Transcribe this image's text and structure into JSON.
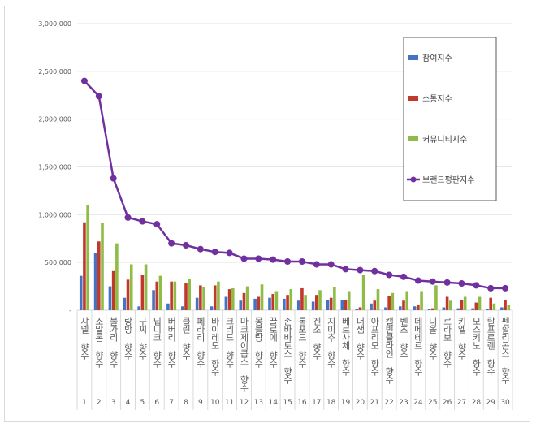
{
  "chart_data": {
    "type": "bar",
    "title": "",
    "xlabel": "",
    "ylabel": "",
    "ylim": [
      0,
      3000000
    ],
    "yticks": [
      "-",
      "500,000",
      "1,000,000",
      "1,500,000",
      "2,000,000",
      "2,500,000",
      "3,000,000"
    ],
    "grid": true,
    "legend_position": "right",
    "categories": [
      "샤넬 향수",
      "조말론 향수",
      "불가리 향수",
      "랑방 향수",
      "구찌 향수",
      "딥디크 향수",
      "버버리 향수",
      "클린 향수",
      "페라리 향수",
      "바이레도 향수",
      "크리드 향수",
      "마크제이콥스 향수",
      "몽블랑 향수",
      "끌로에 향수",
      "존바바토스 향수",
      "톰포드 향수",
      "겐조 향수",
      "지미추 향수",
      "베르사체 향수",
      "더샘 향수",
      "아프리모 향수",
      "캘빈클라인 향수",
      "벤츠 향수",
      "데메테르 향수",
      "디올 향수",
      "르라보 향수",
      "키엘 향수",
      "모스키노 향수",
      "랄프로렌 향수",
      "펜할리곤스 향수"
    ],
    "ranks": [
      "1",
      "2",
      "3",
      "4",
      "5",
      "6",
      "7",
      "8",
      "9",
      "10",
      "11",
      "12",
      "13",
      "14",
      "15",
      "16",
      "17",
      "18",
      "19",
      "20",
      "21",
      "22",
      "23",
      "24",
      "25",
      "26",
      "27",
      "28",
      "29",
      "30"
    ],
    "series": [
      {
        "name": "참여지수",
        "type": "bar",
        "color": "#4472c4",
        "values": [
          360000,
          600000,
          250000,
          130000,
          40000,
          210000,
          70000,
          40000,
          130000,
          40000,
          140000,
          100000,
          120000,
          130000,
          120000,
          100000,
          90000,
          110000,
          110000,
          10000,
          70000,
          30000,
          40000,
          40000,
          10000,
          30000,
          20000,
          20000,
          10000,
          30000
        ]
      },
      {
        "name": "소통지수",
        "type": "bar",
        "color": "#c0392b",
        "values": [
          920000,
          720000,
          410000,
          320000,
          370000,
          300000,
          300000,
          280000,
          260000,
          260000,
          220000,
          180000,
          140000,
          170000,
          160000,
          230000,
          160000,
          130000,
          110000,
          30000,
          100000,
          150000,
          100000,
          60000,
          20000,
          140000,
          110000,
          80000,
          130000,
          110000
        ]
      },
      {
        "name": "커뮤니티지수",
        "type": "bar",
        "color": "#8fbc45",
        "values": [
          1100000,
          910000,
          700000,
          480000,
          480000,
          360000,
          300000,
          330000,
          240000,
          300000,
          230000,
          250000,
          270000,
          200000,
          220000,
          160000,
          210000,
          240000,
          200000,
          370000,
          220000,
          180000,
          200000,
          200000,
          260000,
          100000,
          140000,
          140000,
          70000,
          60000
        ]
      },
      {
        "name": "브랜드평판지수",
        "type": "line",
        "color": "#7030a0",
        "values": [
          2400000,
          2240000,
          1380000,
          970000,
          930000,
          900000,
          700000,
          680000,
          640000,
          610000,
          600000,
          540000,
          540000,
          530000,
          510000,
          510000,
          480000,
          480000,
          430000,
          420000,
          410000,
          370000,
          350000,
          310000,
          300000,
          290000,
          280000,
          260000,
          230000,
          230000
        ]
      }
    ]
  }
}
